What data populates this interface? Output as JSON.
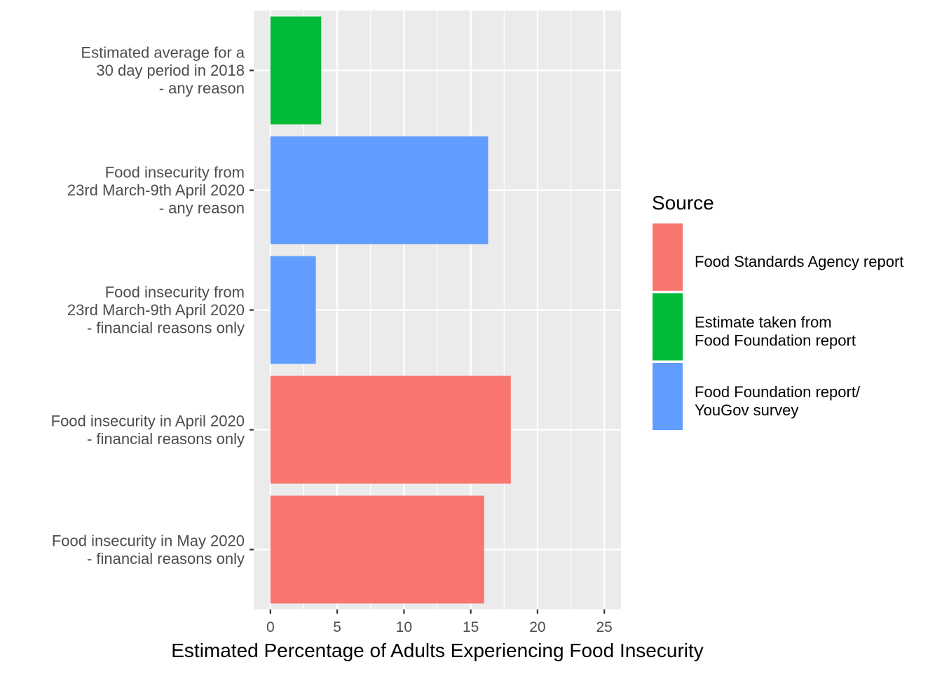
{
  "chart_data": {
    "type": "bar",
    "orientation": "horizontal",
    "categories": [
      [
        "Estimated average for a",
        "30 day period in 2018",
        "- any reason"
      ],
      [
        "Food insecurity from",
        "23rd March-9th April 2020",
        "- any reason"
      ],
      [
        "Food insecurity from",
        "23rd March-9th April 2020",
        "- financial reasons only"
      ],
      [
        "Food insecurity in April 2020",
        "- financial reasons only"
      ],
      [
        "Food insecurity in May 2020",
        "- financial reasons only"
      ]
    ],
    "values": [
      3.8,
      16.3,
      3.4,
      18.0,
      16.0
    ],
    "source_index": [
      1,
      2,
      2,
      0,
      0
    ],
    "xlabel": "Estimated Percentage of Adults Experiencing Food Insecurity",
    "ylabel": "",
    "xlim": [
      -1.25,
      26.25
    ],
    "xticks": [
      0,
      5,
      10,
      15,
      20,
      25
    ],
    "grid": true,
    "panel_background": "#ebebeb",
    "legend": {
      "title": "Source",
      "placement": "right",
      "entries": [
        {
          "label": [
            "Food Standards Agency report"
          ],
          "color": "#F8766D"
        },
        {
          "label": [
            "Estimate taken from",
            "Food Foundation report"
          ],
          "color": "#00BA38"
        },
        {
          "label": [
            "Food Foundation report/",
            "YouGov survey"
          ],
          "color": "#619CFF"
        }
      ]
    }
  }
}
